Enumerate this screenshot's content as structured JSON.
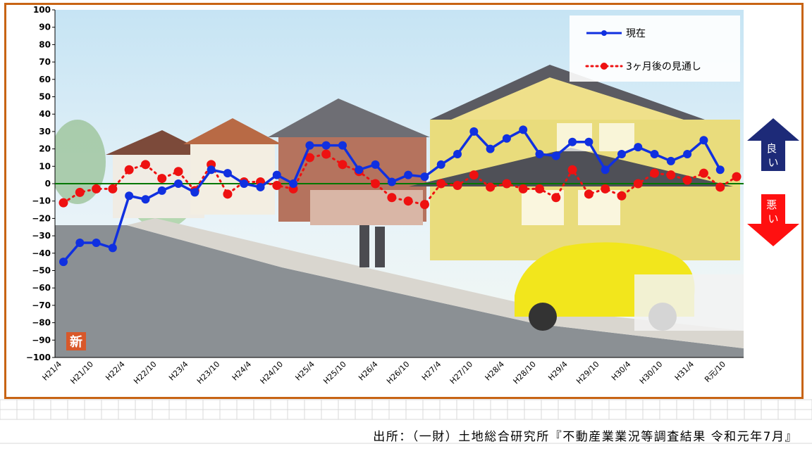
{
  "chart_data": {
    "type": "line",
    "ylim": [
      -100,
      100
    ],
    "yticks": [
      100,
      90,
      80,
      70,
      60,
      50,
      40,
      30,
      20,
      10,
      0,
      -10,
      -20,
      -30,
      -40,
      -50,
      -60,
      -70,
      -80,
      -90,
      -100
    ],
    "ytick_labels": [
      "100",
      "90",
      "80",
      "70",
      "60",
      "50",
      "40",
      "30",
      "20",
      "10",
      "0",
      "−10",
      "−20",
      "−30",
      "−40",
      "−50",
      "−60",
      "−70",
      "−80",
      "−90",
      "−100"
    ],
    "x_labels": [
      "H21/4",
      "H21/10",
      "H22/4",
      "H22/10",
      "H23/4",
      "H23/10",
      "H24/4",
      "H24/10",
      "H25/4",
      "H25/10",
      "H26/4",
      "H26/10",
      "H27/4",
      "H27/10",
      "H28/4",
      "H28/10",
      "H29/4",
      "H29/10",
      "H30/4",
      "H30/10",
      "H31/4",
      "R元/10"
    ],
    "legend": {
      "placement": "top-right"
    },
    "series": [
      {
        "name": "現在",
        "color": "#1030e0",
        "style": "solid",
        "values": [
          -45,
          -34,
          -34,
          -37,
          -7,
          -9,
          -4,
          0,
          -5,
          8,
          6,
          0,
          -2,
          5,
          0,
          22,
          22,
          22,
          8,
          11,
          1,
          5,
          4,
          11,
          17,
          30,
          20,
          26,
          31,
          17,
          16,
          24,
          24,
          8,
          17,
          21,
          17,
          13,
          17,
          25,
          8
        ]
      },
      {
        "name": "3ヶ月後の見通し",
        "color": "#ee1111",
        "style": "dotted",
        "values": [
          -11,
          -5,
          -3,
          -3,
          8,
          11,
          3,
          7,
          -4,
          11,
          -6,
          1,
          1,
          -1,
          -3,
          15,
          17,
          11,
          7,
          0,
          -8,
          -10,
          -12,
          0,
          -1,
          5,
          -2,
          0,
          -3,
          -3,
          -8,
          8,
          -6,
          -3,
          -7,
          0,
          6,
          5,
          2,
          6,
          -2,
          4
        ]
      }
    ],
    "zero_line_color": "#007700",
    "badge_text": "新",
    "arrow_labels": {
      "up": "良い",
      "down": "悪い"
    }
  },
  "source_note": "出所：（一財）土地総合研究所『不動産業業況等調査結果 令和元年7月』"
}
